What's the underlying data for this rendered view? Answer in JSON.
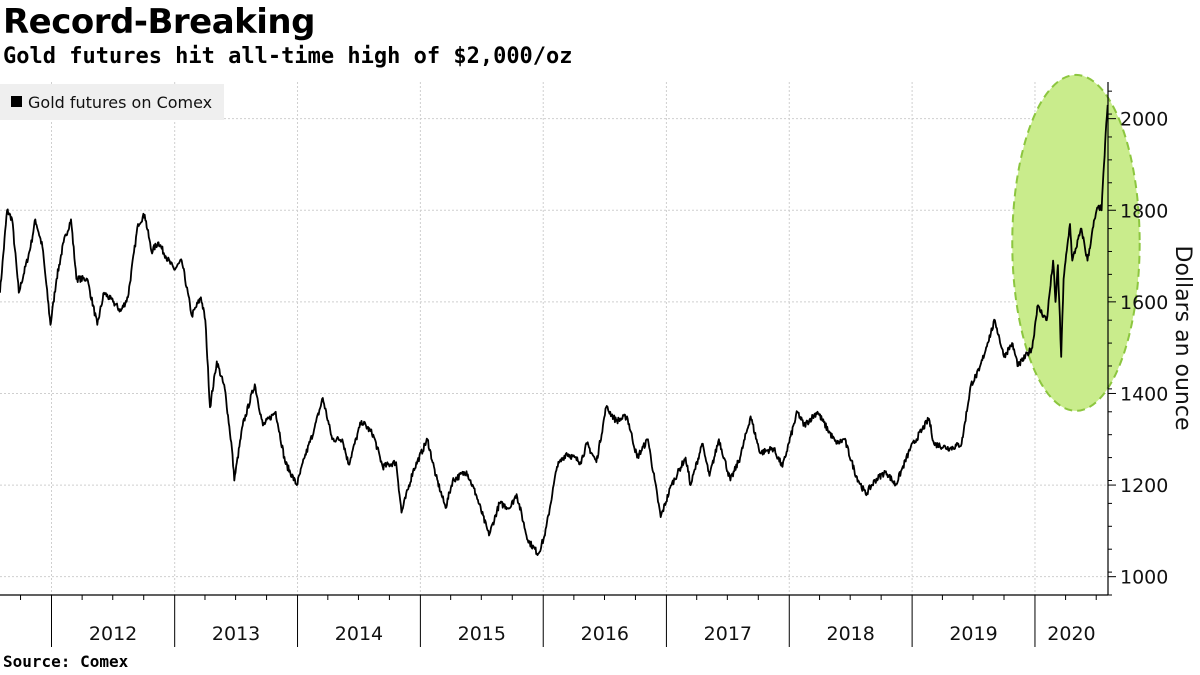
{
  "header": {
    "title": "Record-Breaking",
    "subtitle": "Gold futures hit all-time high of $2,000/oz"
  },
  "footer": {
    "source": "Source: Comex"
  },
  "colors": {
    "line": "#000000",
    "highlight_fill": "#c9ec8c",
    "highlight_stroke": "#8cc63f",
    "grid": "#cfcfcf",
    "legend_bg": "#efefef"
  },
  "chart_data": {
    "type": "line",
    "title": "Record-Breaking",
    "subtitle": "Gold futures hit all-time high of $2,000/oz",
    "ylabel": "Dollars an ounce",
    "xlabel": "",
    "ylim": [
      960,
      2080
    ],
    "xlim": [
      "2011-08-01",
      "2020-08-05"
    ],
    "yticks": [
      1000,
      1200,
      1400,
      1600,
      1800,
      2000
    ],
    "xticks": [
      "2012",
      "2013",
      "2014",
      "2015",
      "2016",
      "2017",
      "2018",
      "2019",
      "2020"
    ],
    "grid": true,
    "legend_position": "top-left",
    "annotation": "highlight ellipse around 2020 rally",
    "series": [
      {
        "name": "Gold futures on Comex",
        "points": [
          [
            "2011-08-01",
            1620
          ],
          [
            "2011-08-22",
            1800
          ],
          [
            "2011-09-06",
            1780
          ],
          [
            "2011-09-26",
            1620
          ],
          [
            "2011-10-10",
            1660
          ],
          [
            "2011-10-31",
            1720
          ],
          [
            "2011-11-14",
            1780
          ],
          [
            "2011-12-05",
            1720
          ],
          [
            "2011-12-29",
            1550
          ],
          [
            "2012-01-16",
            1650
          ],
          [
            "2012-02-06",
            1730
          ],
          [
            "2012-02-28",
            1780
          ],
          [
            "2012-03-15",
            1650
          ],
          [
            "2012-04-16",
            1650
          ],
          [
            "2012-05-16",
            1550
          ],
          [
            "2012-06-05",
            1620
          ],
          [
            "2012-07-02",
            1600
          ],
          [
            "2012-07-25",
            1580
          ],
          [
            "2012-08-15",
            1610
          ],
          [
            "2012-09-14",
            1770
          ],
          [
            "2012-10-04",
            1790
          ],
          [
            "2012-10-24",
            1710
          ],
          [
            "2012-11-14",
            1730
          ],
          [
            "2012-12-05",
            1700
          ],
          [
            "2012-12-31",
            1670
          ],
          [
            "2013-01-22",
            1690
          ],
          [
            "2013-02-21",
            1570
          ],
          [
            "2013-03-20",
            1610
          ],
          [
            "2013-04-02",
            1560
          ],
          [
            "2013-04-16",
            1370
          ],
          [
            "2013-05-06",
            1470
          ],
          [
            "2013-05-30",
            1410
          ],
          [
            "2013-06-20",
            1280
          ],
          [
            "2013-06-27",
            1210
          ],
          [
            "2013-07-22",
            1330
          ],
          [
            "2013-08-27",
            1420
          ],
          [
            "2013-09-20",
            1330
          ],
          [
            "2013-10-28",
            1360
          ],
          [
            "2013-11-25",
            1250
          ],
          [
            "2013-12-30",
            1200
          ],
          [
            "2014-01-22",
            1260
          ],
          [
            "2014-02-19",
            1320
          ],
          [
            "2014-03-17",
            1390
          ],
          [
            "2014-04-14",
            1300
          ],
          [
            "2014-05-14",
            1300
          ],
          [
            "2014-06-02",
            1245
          ],
          [
            "2014-07-10",
            1340
          ],
          [
            "2014-08-14",
            1310
          ],
          [
            "2014-09-11",
            1240
          ],
          [
            "2014-10-21",
            1250
          ],
          [
            "2014-11-06",
            1140
          ],
          [
            "2014-12-10",
            1230
          ],
          [
            "2015-01-22",
            1300
          ],
          [
            "2015-02-16",
            1220
          ],
          [
            "2015-03-17",
            1150
          ],
          [
            "2015-04-07",
            1210
          ],
          [
            "2015-05-18",
            1230
          ],
          [
            "2015-06-15",
            1180
          ],
          [
            "2015-07-24",
            1090
          ],
          [
            "2015-08-24",
            1160
          ],
          [
            "2015-09-24",
            1150
          ],
          [
            "2015-10-14",
            1180
          ],
          [
            "2015-11-16",
            1080
          ],
          [
            "2015-12-17",
            1050
          ],
          [
            "2016-01-06",
            1090
          ],
          [
            "2016-02-11",
            1240
          ],
          [
            "2016-03-10",
            1270
          ],
          [
            "2016-04-21",
            1250
          ],
          [
            "2016-05-10",
            1290
          ],
          [
            "2016-06-07",
            1250
          ],
          [
            "2016-07-06",
            1370
          ],
          [
            "2016-08-05",
            1340
          ],
          [
            "2016-09-06",
            1350
          ],
          [
            "2016-10-06",
            1260
          ],
          [
            "2016-11-07",
            1300
          ],
          [
            "2016-12-15",
            1130
          ],
          [
            "2017-01-16",
            1200
          ],
          [
            "2017-02-27",
            1260
          ],
          [
            "2017-03-14",
            1200
          ],
          [
            "2017-04-17",
            1290
          ],
          [
            "2017-05-09",
            1220
          ],
          [
            "2017-06-06",
            1300
          ],
          [
            "2017-07-10",
            1210
          ],
          [
            "2017-08-08",
            1260
          ],
          [
            "2017-09-08",
            1350
          ],
          [
            "2017-10-06",
            1270
          ],
          [
            "2017-11-15",
            1280
          ],
          [
            "2017-12-12",
            1240
          ],
          [
            "2018-01-25",
            1360
          ],
          [
            "2018-02-14",
            1330
          ],
          [
            "2018-03-26",
            1360
          ],
          [
            "2018-04-10",
            1340
          ],
          [
            "2018-05-21",
            1290
          ],
          [
            "2018-06-14",
            1300
          ],
          [
            "2018-07-19",
            1220
          ],
          [
            "2018-08-16",
            1180
          ],
          [
            "2018-09-13",
            1210
          ],
          [
            "2018-10-15",
            1230
          ],
          [
            "2018-11-13",
            1200
          ],
          [
            "2018-12-27",
            1280
          ],
          [
            "2019-01-30",
            1320
          ],
          [
            "2019-02-20",
            1345
          ],
          [
            "2019-03-07",
            1290
          ],
          [
            "2019-04-23",
            1280
          ],
          [
            "2019-05-28",
            1290
          ],
          [
            "2019-06-25",
            1420
          ],
          [
            "2019-07-19",
            1450
          ],
          [
            "2019-08-13",
            1510
          ],
          [
            "2019-09-04",
            1560
          ],
          [
            "2019-10-01",
            1480
          ],
          [
            "2019-10-25",
            1510
          ],
          [
            "2019-11-12",
            1460
          ],
          [
            "2019-12-24",
            1500
          ],
          [
            "2020-01-08",
            1590
          ],
          [
            "2020-02-05",
            1560
          ],
          [
            "2020-02-24",
            1690
          ],
          [
            "2020-03-02",
            1600
          ],
          [
            "2020-03-09",
            1680
          ],
          [
            "2020-03-19",
            1480
          ],
          [
            "2020-03-26",
            1650
          ],
          [
            "2020-04-14",
            1770
          ],
          [
            "2020-04-21",
            1690
          ],
          [
            "2020-05-18",
            1760
          ],
          [
            "2020-06-05",
            1690
          ],
          [
            "2020-06-26",
            1780
          ],
          [
            "2020-07-08",
            1810
          ],
          [
            "2020-07-17",
            1800
          ],
          [
            "2020-07-24",
            1900
          ],
          [
            "2020-07-31",
            1990
          ],
          [
            "2020-08-04",
            2030
          ]
        ]
      }
    ]
  }
}
